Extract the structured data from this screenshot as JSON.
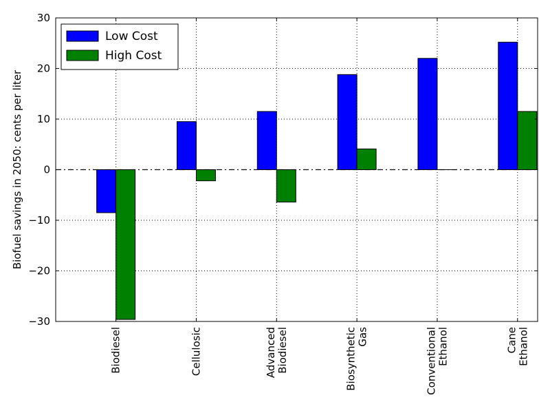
{
  "chart_data": {
    "type": "bar",
    "title": "",
    "xlabel": "",
    "ylabel": "Biofuel savings in 2050: cents per liter",
    "ylim": [
      -30,
      30
    ],
    "yticks": [
      30,
      20,
      10,
      0,
      -10,
      -20,
      -30
    ],
    "ytick_labels": [
      "30",
      "20",
      "10",
      "0",
      "−10",
      "−20",
      "−30"
    ],
    "grid": true,
    "legend_position": "top-left",
    "zero_line": "dash-dot",
    "categories": [
      "Biodiesel",
      "Cellulosic",
      "Advanced Biodiesel",
      "Biosynthetic Gas",
      "Conventional Ethanol",
      "Cane Ethanol"
    ],
    "category_label_lines": [
      [
        "Biodiesel"
      ],
      [
        "Cellulosic"
      ],
      [
        "Advanced",
        "Biodiesel"
      ],
      [
        "Biosynthetic",
        "Gas"
      ],
      [
        "Conventional",
        "Ethanol"
      ],
      [
        "Cane",
        "Ethanol"
      ]
    ],
    "series": [
      {
        "name": "Low Cost",
        "color": "#0000ff",
        "values": [
          -8.5,
          9.5,
          11.5,
          18.8,
          22.0,
          25.2
        ]
      },
      {
        "name": "High Cost",
        "color": "#008000",
        "values": [
          -29.6,
          -2.2,
          -6.4,
          4.1,
          0.0,
          11.5
        ]
      }
    ]
  }
}
